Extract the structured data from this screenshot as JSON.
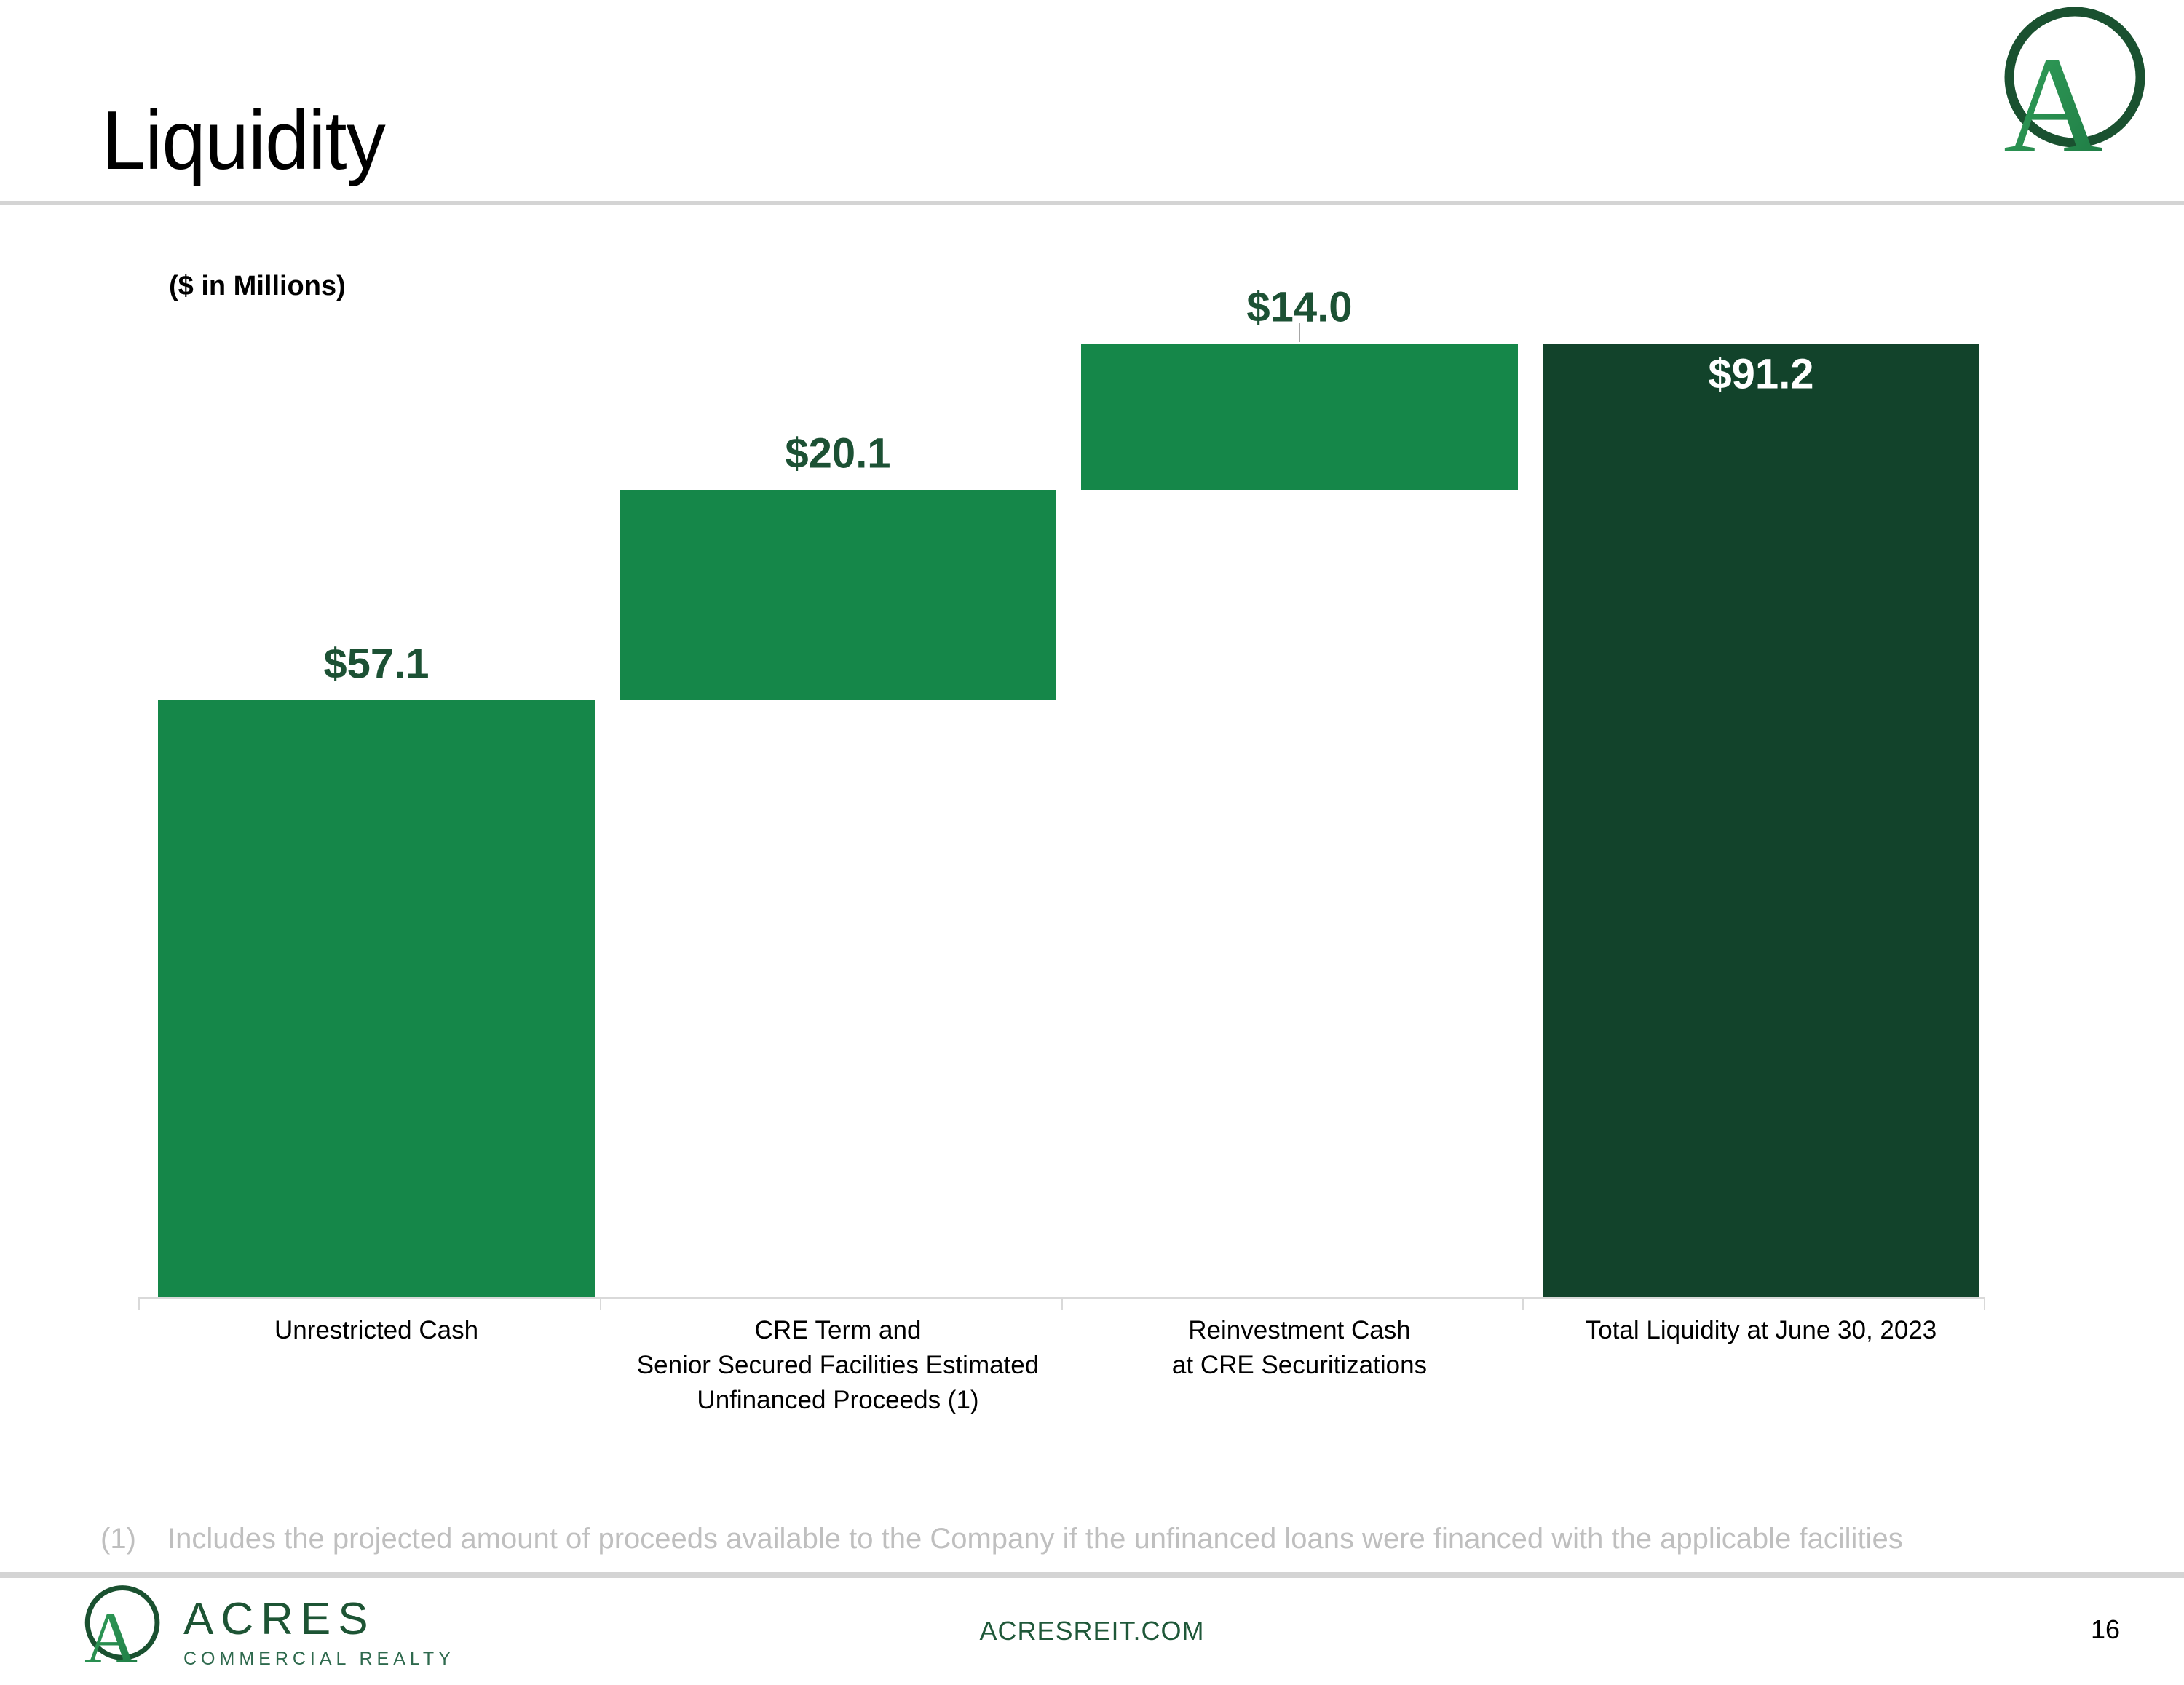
{
  "header": {
    "title": "Liquidity"
  },
  "brand": {
    "logo_letter": "A",
    "footer_wordmark": "ACRES",
    "footer_wordmark_sub": "COMMERCIAL REALTY"
  },
  "chart_data": {
    "type": "bar",
    "subtype": "waterfall",
    "title": "",
    "units_label": "($ in Millions)",
    "categories": [
      "Unrestricted Cash",
      "CRE Term and\nSenior Secured Facilities Estimated\nUnfinanced Proceeds (1)",
      "Reinvestment Cash\nat CRE Securitizations",
      "Total Liquidity at June 30, 2023"
    ],
    "values": [
      57.1,
      20.1,
      14.0,
      91.2
    ],
    "value_labels": [
      "$57.1",
      "$20.1",
      "$14.0",
      "$91.2"
    ],
    "roles": [
      "increase",
      "increase",
      "increase",
      "total"
    ],
    "leader_line_indices": [
      2
    ],
    "ylim": [
      0,
      100
    ],
    "grid": false,
    "legend": "none",
    "colors": {
      "increase": "#158749",
      "total": "#12432b",
      "value_label": "#1c5134",
      "value_label_on_total": "#ffffff",
      "axis": "#d9d9d9",
      "leader": "#a6a6a6"
    }
  },
  "footnote": {
    "marker": "(1)",
    "text": "Includes the projected amount of proceeds available to the Company if the unfinanced loans were financed with the applicable facilities"
  },
  "footer": {
    "url": "ACRESREIT.COM",
    "page_number": "16"
  }
}
